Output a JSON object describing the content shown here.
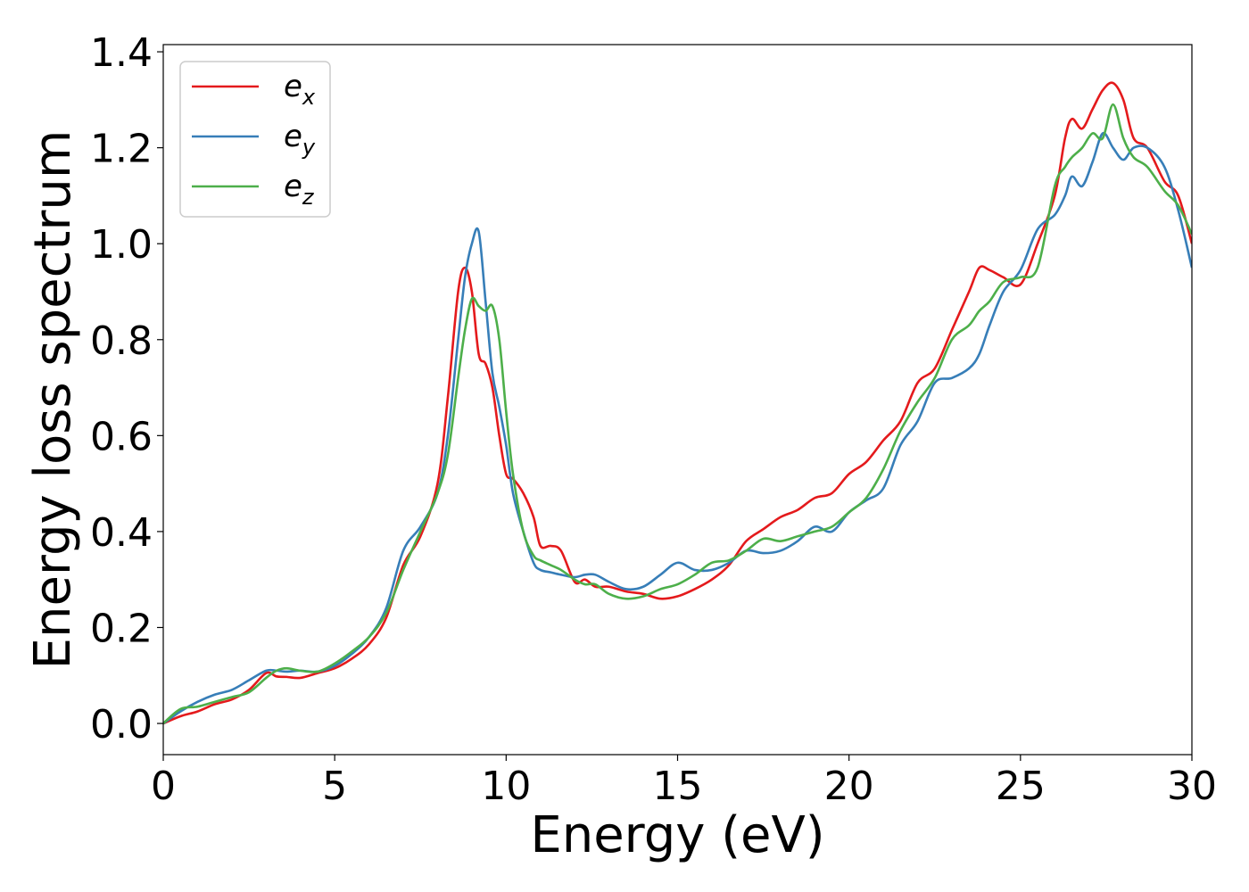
{
  "chart_data": {
    "type": "line",
    "xlabel": "Energy (eV)",
    "ylabel": "Energy loss spectrum",
    "xlim": [
      0,
      30
    ],
    "ylim": [
      -0.065,
      1.415
    ],
    "xticks": [
      0,
      5,
      10,
      15,
      20,
      25,
      30
    ],
    "xtick_labels": [
      "0",
      "5",
      "10",
      "15",
      "20",
      "25",
      "30"
    ],
    "yticks": [
      0.0,
      0.2,
      0.4,
      0.6,
      0.8,
      1.0,
      1.2,
      1.4
    ],
    "ytick_labels": [
      "0.0",
      "0.2",
      "0.4",
      "0.6",
      "0.8",
      "1.0",
      "1.2",
      "1.4"
    ],
    "grid": false,
    "legend": "top-left",
    "series": [
      {
        "name": "e_x",
        "base": "e",
        "sub": "x",
        "color": "#e41a1c",
        "x": [
          0,
          0.5,
          1,
          1.5,
          2,
          2.5,
          3,
          3.3,
          3.6,
          4,
          4.5,
          5,
          5.5,
          6,
          6.5,
          7,
          7.5,
          8,
          8.3,
          8.6,
          8.8,
          9,
          9.2,
          9.4,
          9.6,
          9.8,
          10,
          10.2,
          10.5,
          10.8,
          11,
          11.3,
          11.6,
          12,
          12.3,
          12.6,
          13,
          13.5,
          14,
          14.5,
          15,
          15.5,
          16,
          16.5,
          17,
          17.5,
          18,
          18.5,
          19,
          19.5,
          20,
          20.5,
          21,
          21.5,
          22,
          22.5,
          23,
          23.5,
          23.8,
          24.1,
          24.5,
          25,
          25.5,
          26,
          26.3,
          26.5,
          26.8,
          27.1,
          27.4,
          27.7,
          28,
          28.3,
          28.7,
          29.2,
          29.6,
          30
        ],
        "y": [
          0.0,
          0.015,
          0.025,
          0.04,
          0.05,
          0.07,
          0.105,
          0.098,
          0.097,
          0.095,
          0.105,
          0.115,
          0.135,
          0.165,
          0.22,
          0.33,
          0.39,
          0.5,
          0.68,
          0.9,
          0.95,
          0.9,
          0.77,
          0.75,
          0.7,
          0.6,
          0.52,
          0.51,
          0.48,
          0.43,
          0.37,
          0.37,
          0.36,
          0.295,
          0.3,
          0.285,
          0.285,
          0.275,
          0.27,
          0.26,
          0.265,
          0.28,
          0.3,
          0.33,
          0.38,
          0.405,
          0.43,
          0.445,
          0.47,
          0.48,
          0.52,
          0.545,
          0.59,
          0.63,
          0.71,
          0.74,
          0.82,
          0.9,
          0.95,
          0.945,
          0.93,
          0.915,
          1.0,
          1.1,
          1.22,
          1.26,
          1.24,
          1.28,
          1.32,
          1.335,
          1.3,
          1.22,
          1.2,
          1.13,
          1.1,
          1.0
        ]
      },
      {
        "name": "e_y",
        "base": "e",
        "sub": "y",
        "color": "#377eb8",
        "x": [
          0,
          0.5,
          1,
          1.5,
          2,
          2.5,
          3,
          3.3,
          3.6,
          4,
          4.5,
          5,
          5.5,
          6,
          6.5,
          7,
          7.5,
          8,
          8.3,
          8.6,
          8.8,
          9,
          9.2,
          9.4,
          9.6,
          9.8,
          10,
          10.2,
          10.5,
          10.8,
          11,
          11.3,
          11.6,
          12,
          12.3,
          12.6,
          13,
          13.5,
          14,
          14.5,
          15,
          15.5,
          16,
          16.5,
          17,
          17.5,
          18,
          18.5,
          19,
          19.5,
          20,
          20.5,
          21,
          21.5,
          22,
          22.5,
          23,
          23.5,
          23.8,
          24.1,
          24.5,
          25,
          25.5,
          26,
          26.3,
          26.5,
          26.8,
          27.1,
          27.4,
          27.7,
          28,
          28.3,
          28.7,
          29.2,
          29.6,
          30
        ],
        "y": [
          0.0,
          0.025,
          0.045,
          0.06,
          0.07,
          0.09,
          0.11,
          0.11,
          0.108,
          0.11,
          0.108,
          0.12,
          0.145,
          0.18,
          0.24,
          0.36,
          0.41,
          0.48,
          0.6,
          0.8,
          0.93,
          1.0,
          1.025,
          0.88,
          0.73,
          0.66,
          0.58,
          0.48,
          0.4,
          0.335,
          0.32,
          0.315,
          0.31,
          0.305,
          0.31,
          0.31,
          0.295,
          0.28,
          0.285,
          0.31,
          0.335,
          0.32,
          0.32,
          0.335,
          0.36,
          0.355,
          0.36,
          0.38,
          0.41,
          0.4,
          0.44,
          0.465,
          0.49,
          0.58,
          0.63,
          0.71,
          0.72,
          0.74,
          0.77,
          0.83,
          0.9,
          0.945,
          1.03,
          1.06,
          1.1,
          1.14,
          1.12,
          1.17,
          1.23,
          1.2,
          1.175,
          1.2,
          1.2,
          1.16,
          1.07,
          0.95
        ]
      },
      {
        "name": "e_z",
        "base": "e",
        "sub": "z",
        "color": "#4daf4a",
        "x": [
          0,
          0.5,
          1,
          1.5,
          2,
          2.5,
          3,
          3.3,
          3.6,
          4,
          4.5,
          5,
          5.5,
          6,
          6.5,
          7,
          7.5,
          8,
          8.3,
          8.6,
          8.8,
          9,
          9.2,
          9.4,
          9.6,
          9.8,
          10,
          10.2,
          10.5,
          10.8,
          11,
          11.3,
          11.6,
          12,
          12.3,
          12.6,
          13,
          13.5,
          14,
          14.5,
          15,
          15.5,
          16,
          16.5,
          17,
          17.5,
          18,
          18.5,
          19,
          19.5,
          20,
          20.5,
          21,
          21.5,
          22,
          22.5,
          23,
          23.5,
          23.8,
          24.1,
          24.5,
          25,
          25.5,
          26,
          26.3,
          26.5,
          26.8,
          27.1,
          27.4,
          27.7,
          28,
          28.3,
          28.7,
          29.2,
          29.6,
          30
        ],
        "y": [
          0.0,
          0.03,
          0.035,
          0.045,
          0.055,
          0.065,
          0.095,
          0.11,
          0.115,
          0.11,
          0.108,
          0.125,
          0.15,
          0.18,
          0.23,
          0.32,
          0.4,
          0.48,
          0.56,
          0.72,
          0.82,
          0.885,
          0.87,
          0.86,
          0.87,
          0.8,
          0.65,
          0.52,
          0.4,
          0.35,
          0.34,
          0.33,
          0.32,
          0.3,
          0.29,
          0.29,
          0.27,
          0.26,
          0.265,
          0.28,
          0.29,
          0.31,
          0.335,
          0.34,
          0.36,
          0.385,
          0.38,
          0.39,
          0.4,
          0.41,
          0.44,
          0.47,
          0.53,
          0.61,
          0.67,
          0.72,
          0.8,
          0.83,
          0.86,
          0.88,
          0.92,
          0.93,
          0.95,
          1.12,
          1.16,
          1.18,
          1.2,
          1.23,
          1.22,
          1.29,
          1.22,
          1.18,
          1.16,
          1.11,
          1.08,
          1.02
        ]
      }
    ]
  }
}
